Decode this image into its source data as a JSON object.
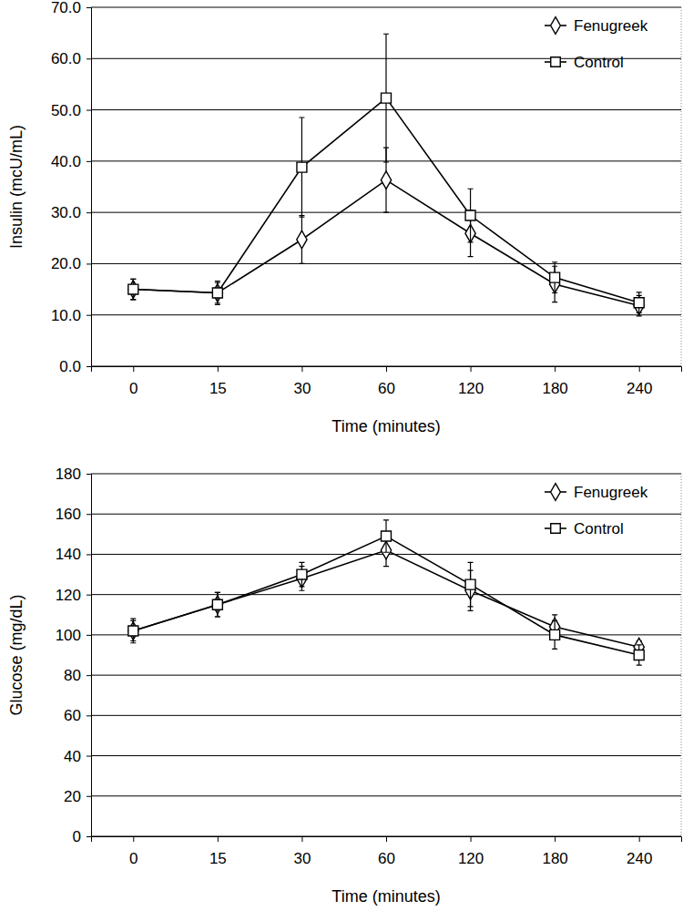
{
  "chart_data": [
    {
      "type": "line",
      "x_label": "Time (minutes)",
      "y_label": "Insulin (mcU/mL)",
      "categories": [
        "0",
        "15",
        "30",
        "60",
        "120",
        "180",
        "240"
      ],
      "series": [
        {
          "name": "Fenugreek",
          "color": "#000000",
          "marker": "diamond",
          "line_style": "solid",
          "values": [
            15.0,
            14.3,
            24.7,
            36.3,
            25.9,
            16.0,
            11.8
          ],
          "errors": [
            2.0,
            2.0,
            4.7,
            6.3,
            4.5,
            3.5,
            2.0
          ]
        },
        {
          "name": "Control",
          "color": "#000000",
          "marker": "square",
          "line_style": "solid",
          "values": [
            15.0,
            14.3,
            38.8,
            52.3,
            29.4,
            17.3,
            12.4
          ],
          "errors": [
            2.0,
            2.3,
            9.7,
            12.5,
            5.2,
            3.0,
            2.0
          ]
        }
      ],
      "ylim": [
        0,
        70
      ],
      "yticks": [
        {
          "value": 0,
          "label": "0.0"
        },
        {
          "value": 10,
          "label": "10.0"
        },
        {
          "value": 20,
          "label": "20.0"
        },
        {
          "value": 30,
          "label": "30.0"
        },
        {
          "value": 40,
          "label": "40.0"
        },
        {
          "value": 50,
          "label": "50.0"
        },
        {
          "value": 60,
          "label": "60.0"
        },
        {
          "value": 70,
          "label": "70.0"
        }
      ],
      "grid": true,
      "legend": "top-right"
    },
    {
      "type": "line",
      "x_label": "Time (minutes)",
      "y_label": "Glucose (mg/dL)",
      "categories": [
        "0",
        "15",
        "30",
        "60",
        "120",
        "180",
        "240"
      ],
      "series": [
        {
          "name": "Fenugreek",
          "color": "#000000",
          "marker": "diamond",
          "line_style": "solid",
          "values": [
            102,
            115,
            128,
            142,
            122,
            104,
            94
          ],
          "errors": [
            5,
            6,
            6,
            8,
            10,
            6,
            3
          ]
        },
        {
          "name": "Control",
          "color": "#000000",
          "marker": "square",
          "line_style": "solid",
          "values": [
            102,
            115,
            130,
            149,
            125,
            100,
            90
          ],
          "errors": [
            6,
            6,
            6,
            8,
            11,
            7,
            5
          ]
        }
      ],
      "ylim": [
        0,
        180
      ],
      "yticks": [
        0,
        20,
        40,
        60,
        80,
        100,
        120,
        140,
        160,
        180
      ],
      "grid": true,
      "legend": "top-right"
    }
  ]
}
